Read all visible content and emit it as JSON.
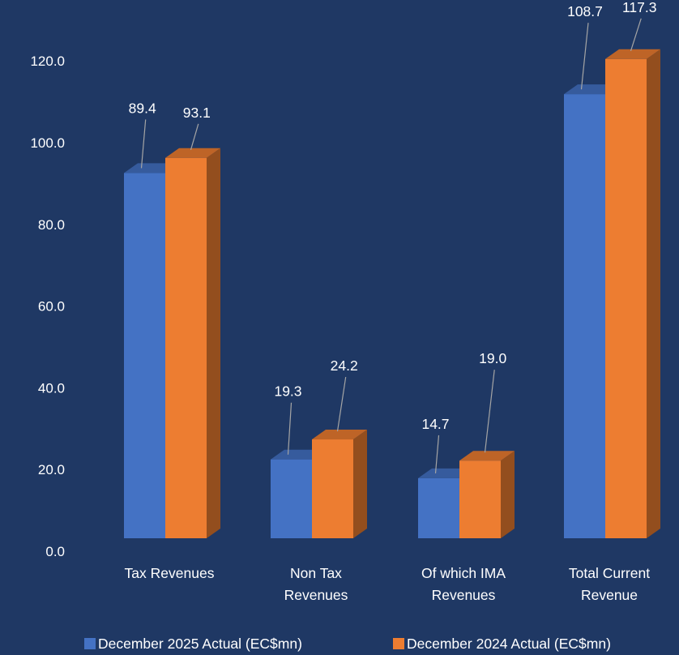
{
  "chart_data": {
    "type": "bar",
    "style": "3d-clustered-column",
    "title": "",
    "xlabel": "",
    "ylabel": "",
    "ylim": [
      0,
      120
    ],
    "y_ticks": [
      "0.0",
      "20.0",
      "40.0",
      "60.0",
      "80.0",
      "100.0",
      "120.0"
    ],
    "grid": false,
    "legend_position": "bottom",
    "background_color": "#1f3864",
    "categories": [
      [
        "Tax Revenues"
      ],
      [
        "Non Tax",
        "Revenues"
      ],
      [
        "Of which IMA",
        "Revenues"
      ],
      [
        "Total Current",
        "Revenue"
      ]
    ],
    "series": [
      {
        "name": "December 2025 Actual (EC$mn)",
        "color": "#4472c4",
        "values": [
          89.4,
          19.3,
          14.7,
          108.7
        ],
        "labels": [
          "89.4",
          "19.3",
          "14.7",
          "108.7"
        ]
      },
      {
        "name": "December 2024 Actual (EC$mn)",
        "color": "#ed7d31",
        "values": [
          93.1,
          24.2,
          19.0,
          117.3
        ],
        "labels": [
          "93.1",
          "24.2",
          "19.0",
          "117.3"
        ]
      }
    ]
  }
}
